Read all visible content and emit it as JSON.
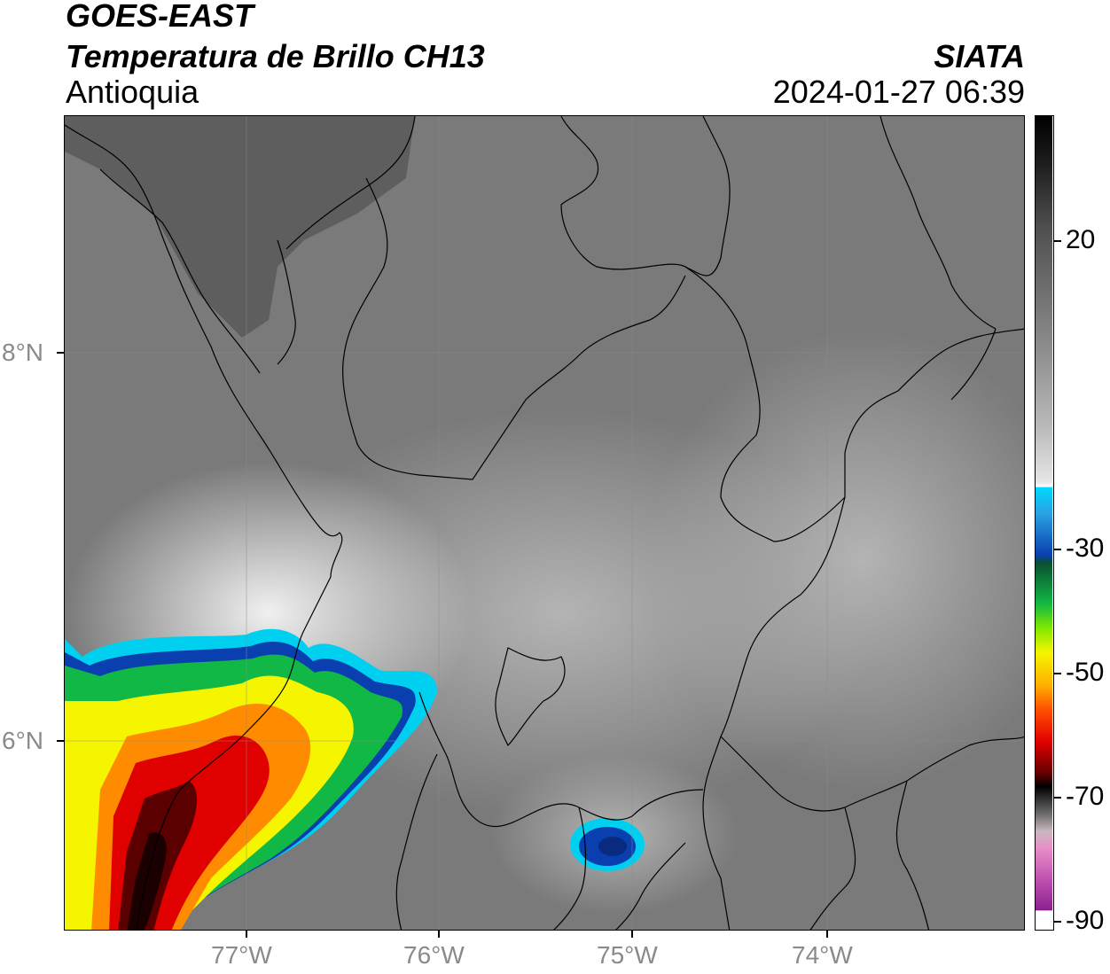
{
  "header": {
    "satellite": "GOES-EAST",
    "product": "Temperatura de Brillo CH13",
    "region": "Antioquia",
    "organization": "SIATA",
    "timestamp": "2024-01-27 06:39"
  },
  "axes": {
    "lat_labels": [
      "8°N",
      "6°N"
    ],
    "lon_labels": [
      "77°W",
      "76°W",
      "75°W",
      "74°W"
    ]
  },
  "colorbar": {
    "labels": [
      "20",
      "-30",
      "-50",
      "-70",
      "-90"
    ],
    "colors": {
      "black": "#000000",
      "dark_gray": "#3a3a3a",
      "gray": "#9a9a9a",
      "white": "#f4f4f4",
      "cyan": "#00d8ff",
      "blue": "#0a3fb0",
      "green": "#12b845",
      "yellow": "#f5f500",
      "orange": "#ff8c00",
      "red": "#e00000",
      "dark_red": "#5a0000",
      "magenta": "#d05ac0"
    }
  }
}
